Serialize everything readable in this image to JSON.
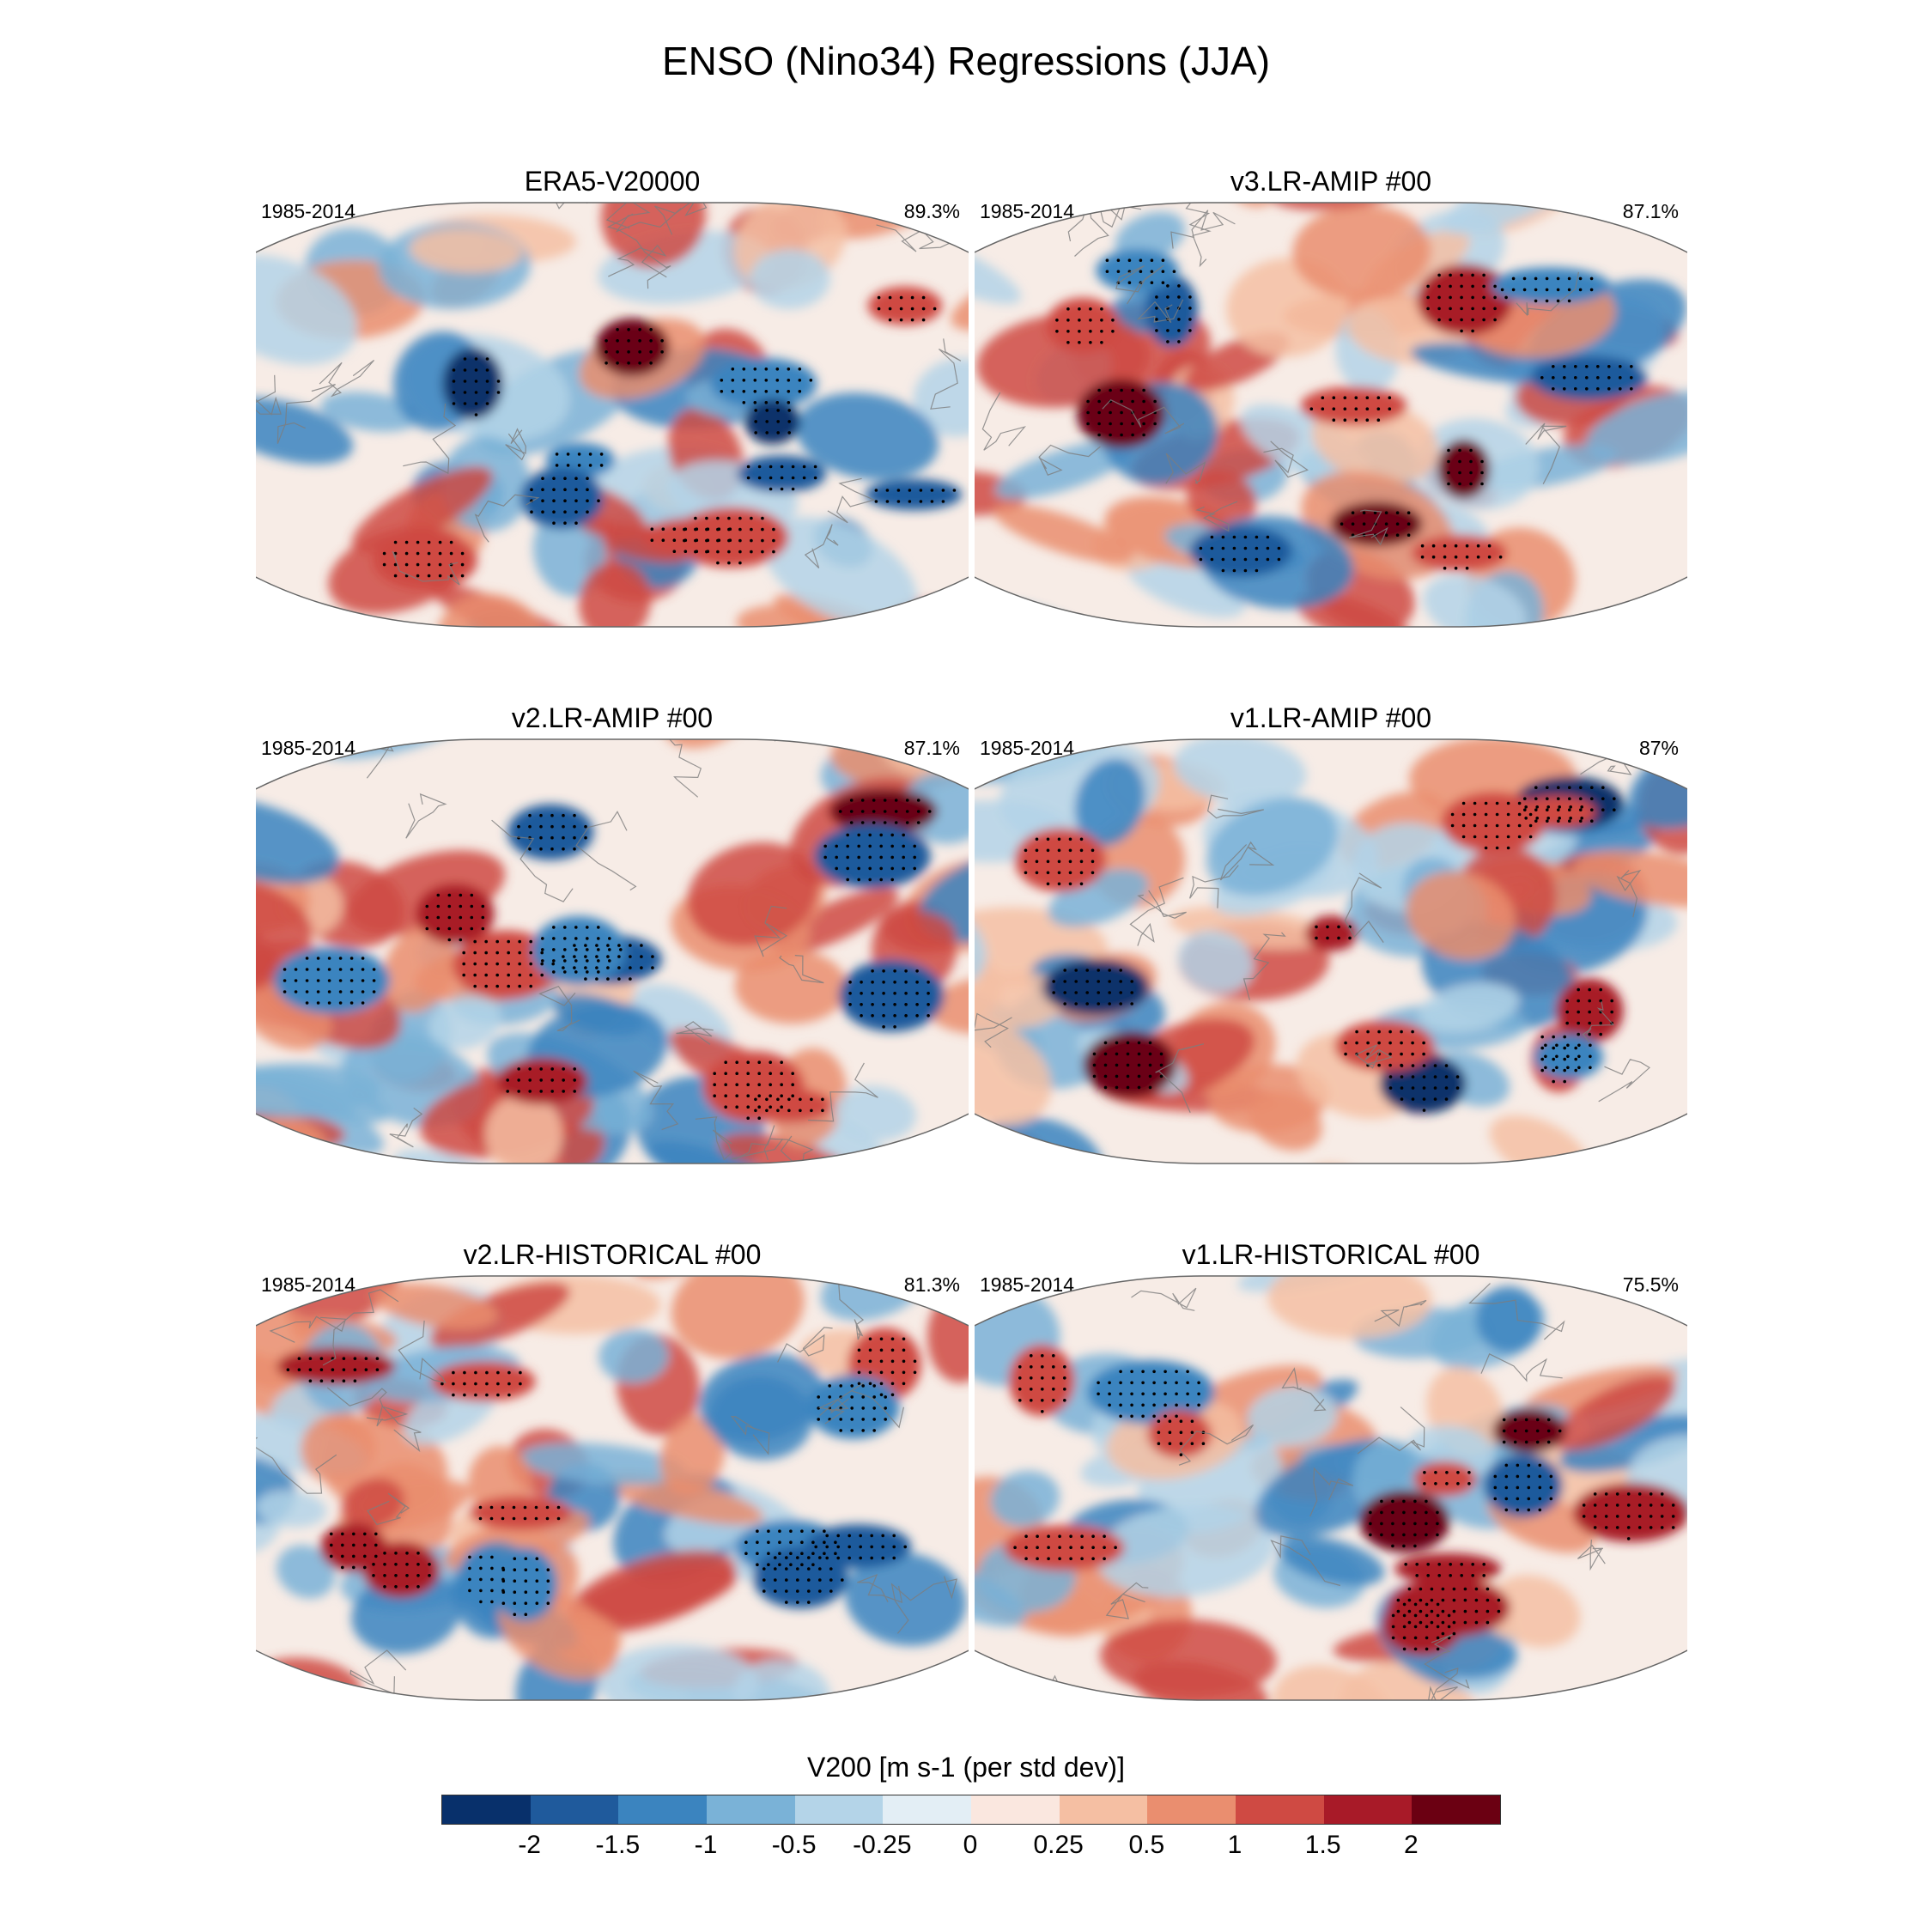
{
  "title": "ENSO (Nino34) Regressions (JJA)",
  "colorbar": {
    "title": "V200 [m s-1 (per std dev)]",
    "colors": [
      "#08306b",
      "#1f5a9c",
      "#3b84bf",
      "#7ab2d7",
      "#b4d4e8",
      "#e3eef5",
      "#fae7df",
      "#f5bfa3",
      "#ea8e6f",
      "#cf4a43",
      "#a81a28",
      "#6b0012"
    ],
    "tick_labels": [
      "-2",
      "-1.5",
      "-1",
      "-0.5",
      "-0.25",
      "0",
      "0.25",
      "0.5",
      "1",
      "1.5",
      "2"
    ]
  },
  "panels": [
    {
      "title": "ERA5-V20000",
      "period": "1985-2014",
      "pct": "89.3%"
    },
    {
      "title": "v3.LR-AMIP  #00",
      "period": "1985-2014",
      "pct": "87.1%"
    },
    {
      "title": "v2.LR-AMIP  #00",
      "period": "1985-2014",
      "pct": "87.1%"
    },
    {
      "title": "v1.LR-AMIP  #00",
      "period": "1985-2014",
      "pct": "87%"
    },
    {
      "title": "v2.LR-HISTORICAL  #00",
      "period": "1985-2014",
      "pct": "81.3%"
    },
    {
      "title": "v1.LR-HISTORICAL  #00",
      "period": "1985-2014",
      "pct": "75.5%"
    }
  ]
}
